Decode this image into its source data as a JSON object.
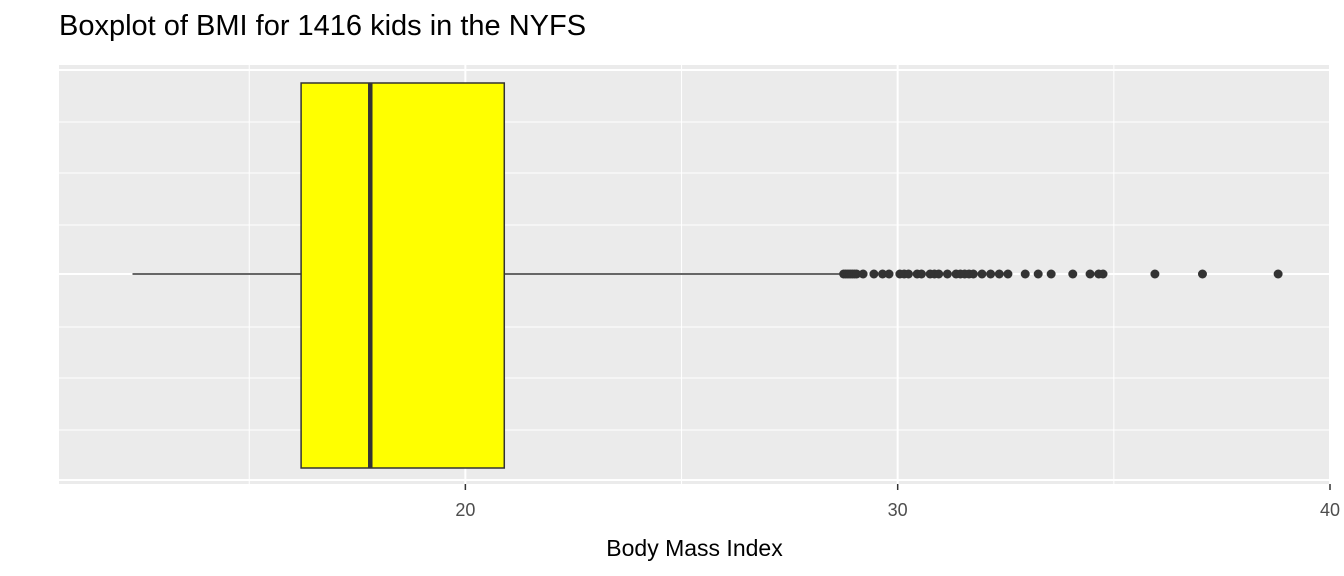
{
  "chart_data": {
    "type": "boxplot",
    "title": "Boxplot of BMI for 1416 kids in the NYFS",
    "xlabel": "Body Mass Index",
    "ylabel": "",
    "xlim": [
      10.6,
      40.0
    ],
    "x_ticks": [
      20,
      30,
      40
    ],
    "x_tick_labels": [
      "20",
      "30",
      "40"
    ],
    "grid": true,
    "box": {
      "whisker_low": 12.3,
      "q1": 16.2,
      "median": 17.8,
      "q3": 20.9,
      "whisker_high": 28.7
    },
    "outliers": [
      28.75,
      28.8,
      28.85,
      28.9,
      28.95,
      29.0,
      29.05,
      29.2,
      29.45,
      29.65,
      29.8,
      30.05,
      30.15,
      30.25,
      30.45,
      30.55,
      30.75,
      30.85,
      30.95,
      31.15,
      31.35,
      31.45,
      31.55,
      31.65,
      31.75,
      31.95,
      32.15,
      32.35,
      32.55,
      32.95,
      33.25,
      33.55,
      34.05,
      34.45,
      34.65,
      34.75,
      35.95,
      37.05,
      38.8
    ],
    "colors": {
      "box_fill": "#FFFF00",
      "box_stroke": "#333333",
      "panel_background": "#EBEBEB",
      "grid": "#FFFFFF",
      "points": "#333333"
    }
  }
}
